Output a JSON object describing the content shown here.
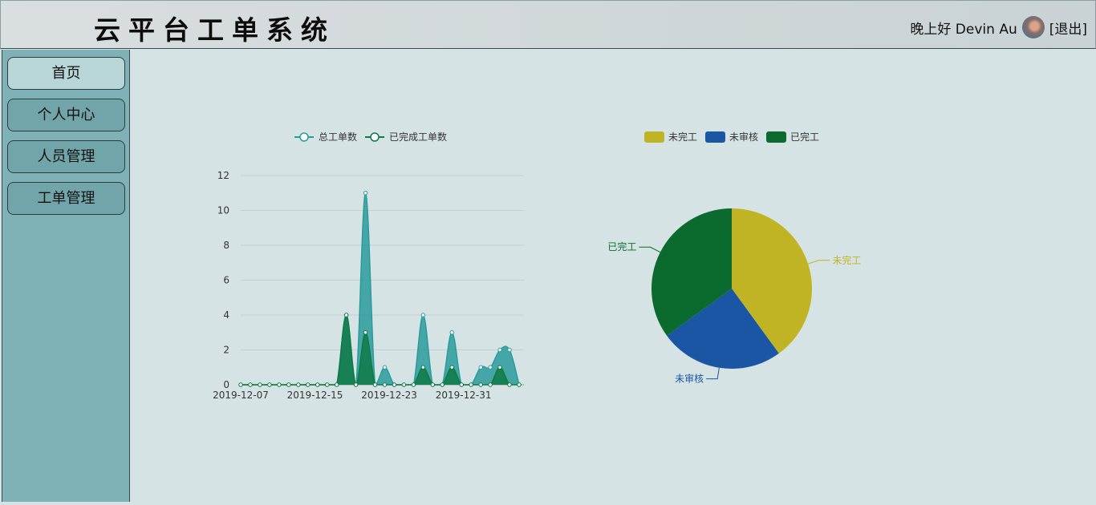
{
  "header": {
    "title": "云平台工单系统",
    "greeting": "晚上好 Devin Au",
    "logout": "[退出]"
  },
  "sidebar": {
    "items": [
      {
        "label": "首页",
        "active": true
      },
      {
        "label": "个人中心",
        "active": false
      },
      {
        "label": "人员管理",
        "active": false
      },
      {
        "label": "工单管理",
        "active": false
      }
    ]
  },
  "colors": {
    "total_series": "#2a9b9b",
    "done_series": "#0f7a47",
    "pie_unfinished": "#c0b424",
    "pie_unreviewed": "#1a56a4",
    "pie_finished": "#0b6b2f"
  },
  "chart_data": [
    {
      "type": "area",
      "legend": [
        "总工单数",
        "已完成工单数"
      ],
      "x_tick_labels": [
        "2019-12-07",
        "2019-12-15",
        "2019-12-23",
        "2019-12-31"
      ],
      "y_tick_labels": [
        "0",
        "2",
        "4",
        "6",
        "8",
        "10",
        "12"
      ],
      "ylim": [
        0,
        12
      ],
      "x_start": "2019-12-07",
      "x_end": "2020-01-06",
      "series": [
        {
          "name": "总工单数",
          "values": [
            0,
            0,
            0,
            0,
            0,
            0,
            0,
            0,
            0,
            0,
            0,
            4,
            0,
            11,
            0,
            1,
            0,
            0,
            0,
            4,
            0,
            0,
            3,
            0,
            0,
            1,
            1,
            2,
            2,
            0
          ]
        },
        {
          "name": "已完成工单数",
          "values": [
            0,
            0,
            0,
            0,
            0,
            0,
            0,
            0,
            0,
            0,
            0,
            4,
            0,
            3,
            0,
            0,
            0,
            0,
            0,
            1,
            0,
            0,
            1,
            0,
            0,
            0,
            0,
            1,
            0,
            0
          ]
        }
      ]
    },
    {
      "type": "pie",
      "legend": [
        "未完工",
        "未审核",
        "已完工"
      ],
      "slices": [
        {
          "name": "未完工",
          "value": 8
        },
        {
          "name": "未审核",
          "value": 5
        },
        {
          "name": "已完工",
          "value": 7
        }
      ]
    }
  ]
}
